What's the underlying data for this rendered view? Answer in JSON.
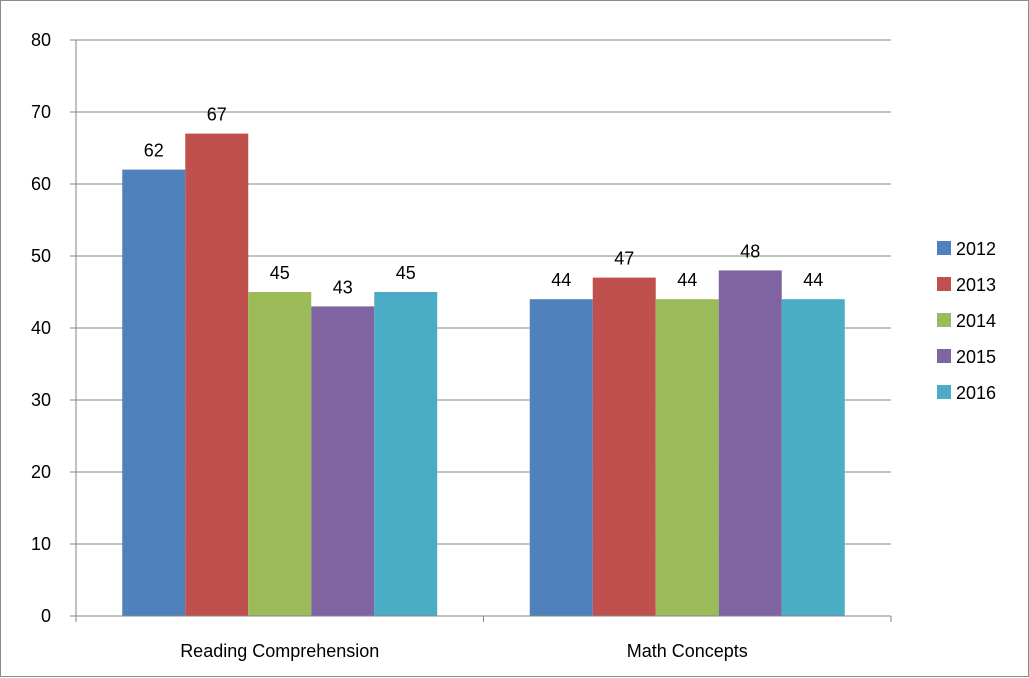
{
  "chart_data": {
    "type": "bar",
    "title": "",
    "xlabel": "",
    "ylabel": "",
    "categories": [
      "Reading Comprehension",
      "Math Concepts"
    ],
    "series": [
      {
        "name": "2012",
        "color": "#4f81bd",
        "values": [
          62,
          44
        ]
      },
      {
        "name": "2013",
        "color": "#c0504d",
        "values": [
          67,
          47
        ]
      },
      {
        "name": "2014",
        "color": "#9bbb59",
        "values": [
          45,
          44
        ]
      },
      {
        "name": "2015",
        "color": "#8064a2",
        "values": [
          43,
          48
        ]
      },
      {
        "name": "2016",
        "color": "#4bacc6",
        "values": [
          45,
          44
        ]
      }
    ],
    "ylim": [
      0,
      80
    ],
    "yticks": [
      0,
      10,
      20,
      30,
      40,
      50,
      60,
      70,
      80
    ],
    "grid": true,
    "legend_position": "right",
    "data_labels": true
  }
}
